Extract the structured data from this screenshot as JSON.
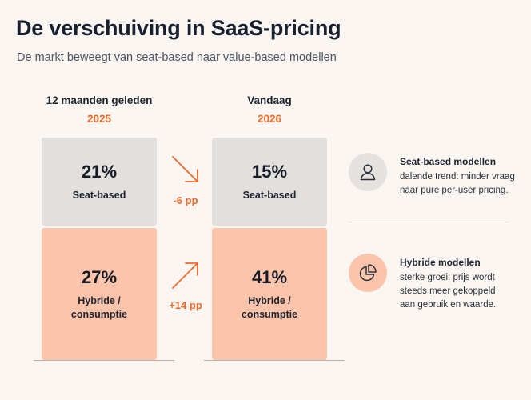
{
  "header": {
    "title": "De verschuiving in SaaS-pricing",
    "subtitle": "De markt beweegt van seat-based naar value-based modellen"
  },
  "columns": [
    {
      "heading": "12 maanden geleden",
      "year": "2025",
      "segments": [
        {
          "percent": "21%",
          "label": "Seat-based",
          "color": "#e2dfdc"
        },
        {
          "percent": "27%",
          "label_line1": "Hybride /",
          "label_line2": "consumptie",
          "color": "#fcc5ab"
        }
      ]
    },
    {
      "heading": "Vandaag",
      "year": "2026",
      "segments": [
        {
          "percent": "15%",
          "label": "Seat-based",
          "color": "#e2dfdc"
        },
        {
          "percent": "41%",
          "label_line1": "Hybride /",
          "label_line2": "consumptie",
          "color": "#fcc5ab"
        }
      ]
    }
  ],
  "changes": {
    "seat_based": {
      "text": "-6 pp",
      "direction": "down",
      "icon": "arrow-down-right-icon"
    },
    "hybrid": {
      "text": "+14 pp",
      "direction": "up",
      "icon": "arrow-up-right-icon"
    }
  },
  "legend": [
    {
      "icon": "person-icon",
      "title": "Seat-based modellen",
      "description": "dalende trend: minder vraag naar pure per-user pricing."
    },
    {
      "icon": "pie-chart-icon",
      "title": "Hybride modellen",
      "description": "sterke groei: prijs wordt steeds meer gekoppeld aan gebruik en waarde."
    }
  ],
  "colors": {
    "accent": "#ea6a2c",
    "seat_based": "#e2dfdc",
    "hybrid": "#fcc5ab",
    "background": "#fbf6f1"
  }
}
